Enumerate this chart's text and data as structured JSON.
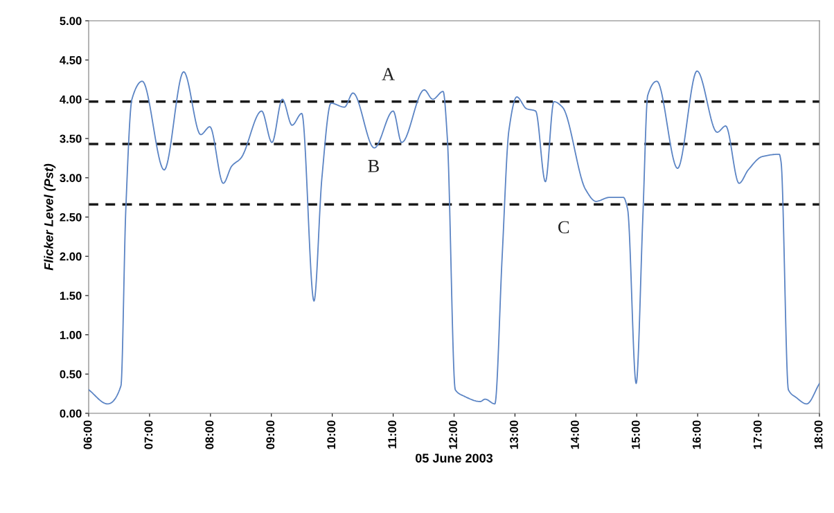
{
  "chart_data": {
    "type": "line",
    "xlabel": "05 June 2003",
    "ylabel": "Flicker Level (Pst)",
    "series": [
      {
        "color": "#5b84c4",
        "x": [
          6.0,
          6.31,
          6.53,
          6.61,
          6.71,
          6.88,
          7.24,
          7.56,
          7.84,
          7.99,
          8.21,
          8.35,
          8.5,
          8.84,
          9.01,
          9.18,
          9.34,
          9.5,
          9.7,
          9.83,
          9.98,
          10.2,
          10.34,
          10.69,
          11.0,
          11.14,
          11.51,
          11.65,
          11.82,
          11.89,
          12.02,
          12.16,
          12.43,
          12.51,
          12.67,
          12.79,
          12.9,
          13.03,
          13.19,
          13.34,
          13.5,
          13.64,
          13.78,
          14.16,
          14.33,
          14.55,
          14.78,
          14.85,
          14.99,
          15.1,
          15.18,
          15.33,
          15.67,
          15.99,
          16.32,
          16.46,
          16.68,
          16.83,
          17.06,
          17.34,
          17.37,
          17.49,
          17.62,
          17.79,
          18.0
        ],
        "values": [
          0.3,
          0.12,
          0.35,
          2.6,
          4.0,
          4.23,
          3.1,
          4.35,
          3.55,
          3.65,
          2.93,
          3.15,
          3.25,
          3.85,
          3.45,
          4.0,
          3.67,
          3.82,
          1.43,
          3.0,
          3.95,
          3.9,
          4.08,
          3.38,
          3.85,
          3.45,
          4.12,
          4.0,
          4.1,
          3.5,
          0.3,
          0.22,
          0.15,
          0.18,
          0.12,
          2.0,
          3.6,
          4.03,
          3.88,
          3.85,
          2.95,
          3.97,
          3.9,
          2.85,
          2.7,
          2.75,
          2.75,
          2.6,
          0.38,
          2.5,
          4.05,
          4.23,
          3.12,
          4.36,
          3.58,
          3.66,
          2.93,
          3.1,
          3.27,
          3.3,
          3.2,
          0.3,
          0.2,
          0.12,
          0.38
        ]
      }
    ],
    "xlim": [
      6,
      18
    ],
    "xticks": [
      {
        "value": 6,
        "label": "06:00"
      },
      {
        "value": 7,
        "label": "07:00"
      },
      {
        "value": 8,
        "label": "08:00"
      },
      {
        "value": 9,
        "label": "09:00"
      },
      {
        "value": 10,
        "label": "10:00"
      },
      {
        "value": 11,
        "label": "11:00"
      },
      {
        "value": 12,
        "label": "12:00"
      },
      {
        "value": 13,
        "label": "13:00"
      },
      {
        "value": 14,
        "label": "14:00"
      },
      {
        "value": 15,
        "label": "15:00"
      },
      {
        "value": 16,
        "label": "16:00"
      },
      {
        "value": 17,
        "label": "17:00"
      },
      {
        "value": 18,
        "label": "18:00"
      }
    ],
    "ylim": [
      0,
      5
    ],
    "yticks": [
      {
        "value": 0,
        "label": "0.00"
      },
      {
        "value": 0.5,
        "label": "0.50"
      },
      {
        "value": 1,
        "label": "1.00"
      },
      {
        "value": 1.5,
        "label": "1.50"
      },
      {
        "value": 2,
        "label": "2.00"
      },
      {
        "value": 2.5,
        "label": "2.50"
      },
      {
        "value": 3,
        "label": "3.00"
      },
      {
        "value": 3.5,
        "label": "3.50"
      },
      {
        "value": 4,
        "label": "4.00"
      },
      {
        "value": 4.5,
        "label": "4.50"
      },
      {
        "value": 5,
        "label": "5.00"
      }
    ],
    "ref_lines": [
      {
        "axis": "y",
        "value": 3.97,
        "label": "A",
        "color": "#1a1a1a",
        "line_style": "dashed"
      },
      {
        "axis": "y",
        "value": 3.43,
        "label": "B",
        "color": "#1a1a1a",
        "line_style": "dashed"
      },
      {
        "axis": "y",
        "value": 2.66,
        "label": "C",
        "color": "#1a1a1a",
        "line_style": "dashed"
      }
    ],
    "grid": false,
    "marker": "none",
    "line_style": "solid"
  }
}
